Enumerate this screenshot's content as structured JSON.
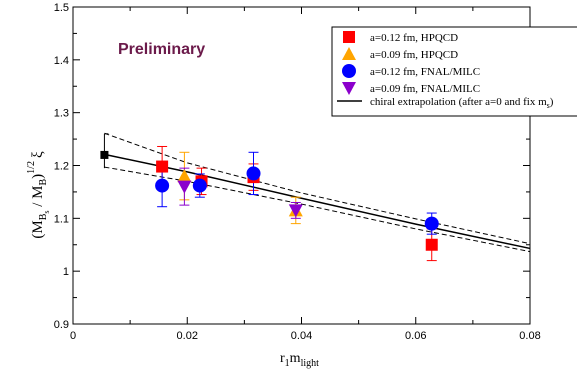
{
  "chart_data": {
    "type": "scatter",
    "xlabel_main": "r",
    "xlabel_sub1": "1",
    "xlabel_mid": "m",
    "xlabel_sub2": "light",
    "ylabel_main": "(M",
    "ylabel_sub1": "B",
    "ylabel_subsub": "s",
    "ylabel_slash": " / M",
    "ylabel_sub2": "B",
    "ylabel_close": ")",
    "ylabel_exp": "1/2",
    "ylabel_xi": "ξ",
    "xlim": [
      0,
      0.08
    ],
    "ylim": [
      0.9,
      1.5
    ],
    "xticks": [
      0,
      0.02,
      0.04,
      0.06,
      0.08
    ],
    "xtick_labels": [
      "0",
      "0.02",
      "0.04",
      "0.06",
      "0.08"
    ],
    "yticks": [
      0.9,
      1.0,
      1.1,
      1.2,
      1.3,
      1.4,
      1.5
    ],
    "ytick_labels": [
      "0.9",
      "1",
      "1.1",
      "1.2",
      "1.3",
      "1.4",
      "1.5"
    ],
    "annotation": {
      "text": "Preliminary",
      "color": "#6b1a4a"
    },
    "legend_position": "top-right",
    "series": [
      {
        "name": "a=0.12 fm, HPQCD",
        "marker": "square",
        "color": "#ff0000",
        "points": [
          {
            "x": 0.0156,
            "y": 1.198,
            "err": 0.038
          },
          {
            "x": 0.0225,
            "y": 1.17,
            "err": 0.025
          },
          {
            "x": 0.0316,
            "y": 1.178,
            "err": 0.025
          },
          {
            "x": 0.0628,
            "y": 1.05,
            "err": 0.03
          }
        ]
      },
      {
        "name": "a=0.09 fm, HPQCD",
        "marker": "triangle-up",
        "color": "#ffa500",
        "points": [
          {
            "x": 0.0195,
            "y": 1.18,
            "err": 0.045
          },
          {
            "x": 0.039,
            "y": 1.115,
            "err": 0.025
          }
        ]
      },
      {
        "name": "a=0.12 fm, FNAL/MILC",
        "marker": "circle",
        "color": "#0000ff",
        "points": [
          {
            "x": 0.0156,
            "y": 1.162,
            "err": 0.04
          },
          {
            "x": 0.0222,
            "y": 1.162,
            "err": 0.022
          },
          {
            "x": 0.0316,
            "y": 1.185,
            "err": 0.04
          },
          {
            "x": 0.0628,
            "y": 1.09,
            "err": 0.02
          }
        ]
      },
      {
        "name": "a=0.09 fm, FNAL/MILC",
        "marker": "triangle-down",
        "color": "#8b00cc",
        "points": [
          {
            "x": 0.0195,
            "y": 1.16,
            "err": 0.035
          },
          {
            "x": 0.039,
            "y": 1.115,
            "err": 0.015
          }
        ]
      }
    ],
    "extrapolated_point": {
      "x": 0.0055,
      "y": 1.22,
      "err_low": 0.025,
      "err_high": 0.04,
      "marker": "square",
      "color": "#000000"
    },
    "chiral_fit": {
      "name": "chiral extrapolation (after a=0 and fix m",
      "name_sub": "s",
      "name_close": ")",
      "central": [
        [
          0.0055,
          1.221
        ],
        [
          0.02,
          1.188
        ],
        [
          0.04,
          1.138
        ],
        [
          0.06,
          1.089
        ],
        [
          0.08,
          1.043
        ]
      ],
      "upper": [
        [
          0.0055,
          1.261
        ],
        [
          0.02,
          1.205
        ],
        [
          0.04,
          1.148
        ],
        [
          0.06,
          1.099
        ],
        [
          0.08,
          1.052
        ]
      ],
      "lower": [
        [
          0.0055,
          1.197
        ],
        [
          0.02,
          1.17
        ],
        [
          0.04,
          1.127
        ],
        [
          0.06,
          1.08
        ],
        [
          0.08,
          1.037
        ]
      ]
    }
  }
}
